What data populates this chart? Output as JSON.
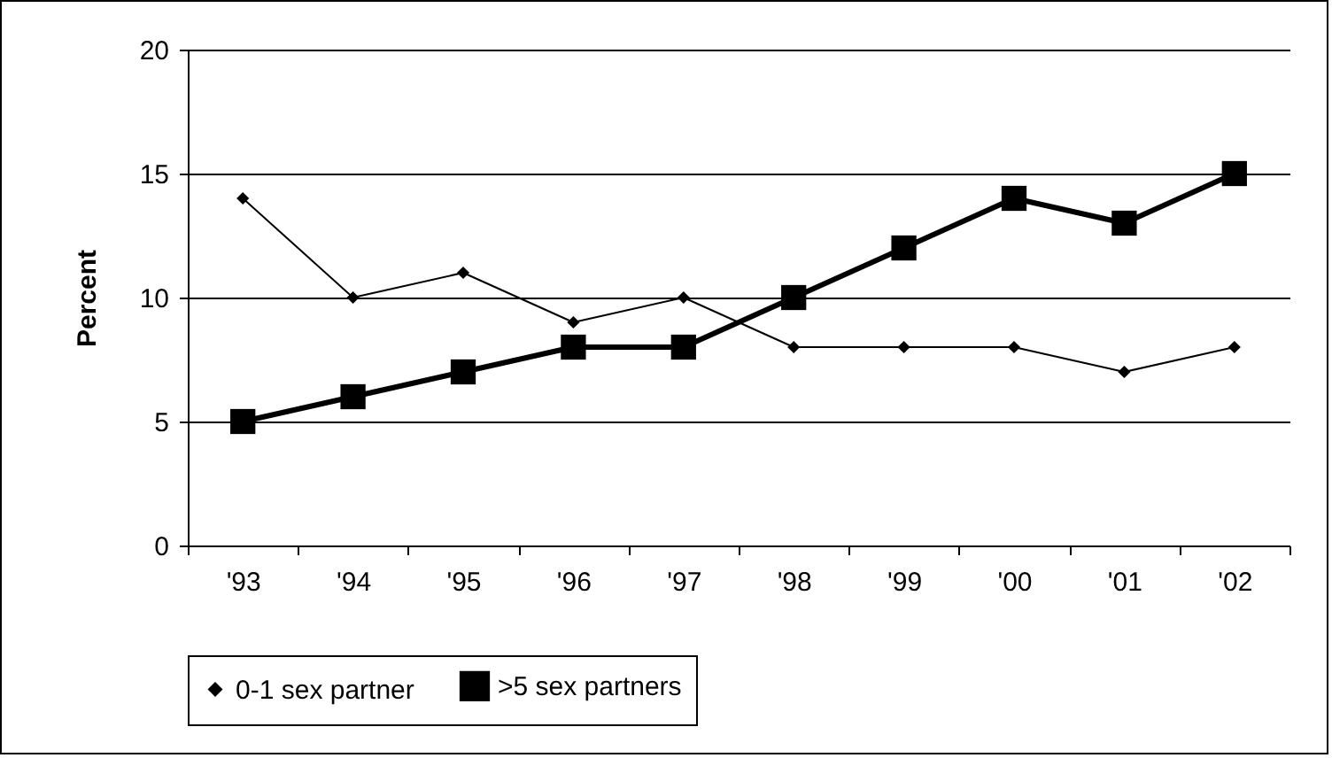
{
  "chart_data": {
    "type": "line",
    "ylabel": "Percent",
    "categories": [
      "'93",
      "'94",
      "'95",
      "'96",
      "'97",
      "'98",
      "'99",
      "'00",
      "'01",
      "'02"
    ],
    "series": [
      {
        "name": "0-1 sex partner",
        "color": "#000000",
        "marker": "diamond",
        "values": [
          14,
          10,
          11,
          9,
          10,
          8,
          8,
          8,
          7,
          8
        ]
      },
      {
        "name": ">5 sex partners",
        "color": "#000000",
        "marker": "square",
        "values": [
          5,
          6,
          7,
          8,
          8,
          10,
          12,
          14,
          13,
          15
        ]
      }
    ],
    "ylim": [
      0,
      20
    ],
    "yticks": [
      0,
      5,
      10,
      15,
      20
    ],
    "grid": "y",
    "legend": "bottom",
    "line_style": "solid"
  }
}
